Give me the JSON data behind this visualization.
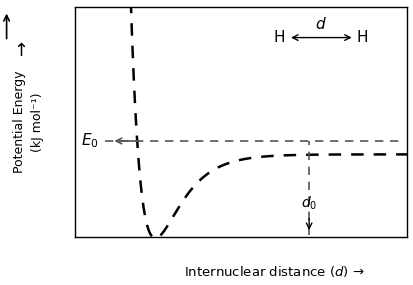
{
  "title": "",
  "xlabel": "Internuclear distance ($d$) →",
  "ylabel": "Potential Energy\n(kJ mol⁻¹)",
  "background_color": "#ffffff",
  "curve_color": "#000000",
  "annotation_color": "#555555",
  "E0_label": "$E_0$",
  "d0_label": "$d_0$",
  "d_label": "$d$",
  "H_arrow_label": "H",
  "x_min": 0.0,
  "x_max": 10.0,
  "y_min": -2.5,
  "y_max": 3.5,
  "morse_De": 2.2,
  "morse_a": 1.4,
  "morse_re": 2.8,
  "morse_shift": -0.35,
  "repulsion_scale": 18.0,
  "repulsion_exp": 3.5,
  "repulsion_start": 0.7,
  "d0_x": 7.2,
  "E0_y": 0.0,
  "line_width": 1.8,
  "dashes": [
    5,
    4
  ]
}
